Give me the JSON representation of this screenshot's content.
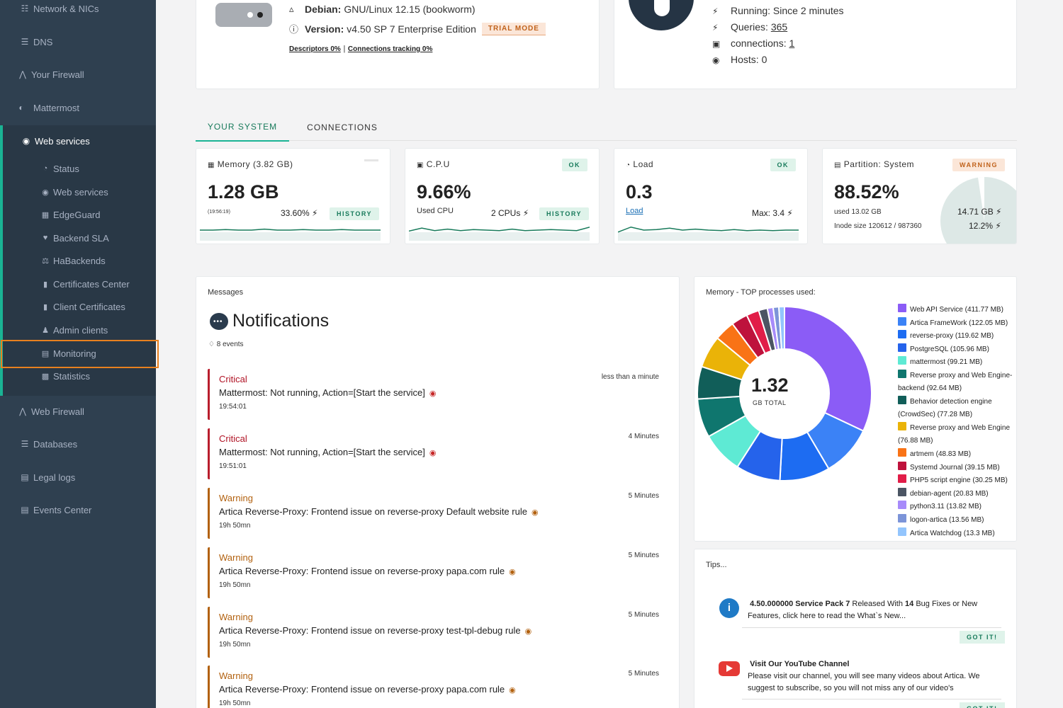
{
  "sidebar": {
    "items": [
      {
        "label": "Network & NICs",
        "icon": "network-icon"
      },
      {
        "label": "DNS",
        "icon": "database-icon"
      },
      {
        "label": "Your Firewall",
        "icon": "firewall-icon"
      },
      {
        "label": "Mattermost",
        "icon": "mattermost-icon"
      },
      {
        "label": "Web services",
        "icon": "globe-icon"
      },
      {
        "label": "Web Firewall",
        "icon": "firewall-icon"
      },
      {
        "label": "Databases",
        "icon": "database-icon"
      },
      {
        "label": "Legal logs",
        "icon": "file-icon"
      },
      {
        "label": "Events Center",
        "icon": "file-icon"
      }
    ],
    "sub_items": [
      {
        "label": "Status",
        "icon": "gauge-icon"
      },
      {
        "label": "Web services",
        "icon": "globe-icon"
      },
      {
        "label": "EdgeGuard",
        "icon": "edge-icon"
      },
      {
        "label": "Backend SLA",
        "icon": "heart-icon"
      },
      {
        "label": "HaBackends",
        "icon": "balance-icon"
      },
      {
        "label": "Certificates Center",
        "icon": "lock-icon"
      },
      {
        "label": "Client Certificates",
        "icon": "lock-icon"
      },
      {
        "label": "Admin clients",
        "icon": "user-icon"
      },
      {
        "label": "Monitoring",
        "icon": "file-chart-icon"
      },
      {
        "label": "Statistics",
        "icon": "chart-icon"
      }
    ]
  },
  "system": {
    "os_label": "Debian:",
    "os_value": "GNU/Linux 12.15 (bookworm)",
    "version_label": "Version:",
    "version_value": "v4.50 SP 7 Enterprise Edition",
    "trial": "TRIAL MODE",
    "descriptors": "Descriptors 0%",
    "separator": "|",
    "connections_tracking": "Connections tracking 0%"
  },
  "service": {
    "running": "Running: Since 2 minutes",
    "queries_label": "Queries:",
    "queries_value": "365",
    "connections_label": "connections:",
    "connections_value": "1",
    "hosts": "Hosts: 0"
  },
  "tabs": [
    {
      "label": "YOUR SYSTEM",
      "active": true
    },
    {
      "label": "CONNECTIONS",
      "active": false
    }
  ],
  "metrics": {
    "memory": {
      "title": "Memory (3.82 GB)",
      "value": "1.28 GB",
      "time": "(19:56:19)",
      "percent": "33.60%",
      "history": "HISTORY",
      "spark": [
        0.5,
        0.5,
        0.45,
        0.5,
        0.5,
        0.4,
        0.5,
        0.5,
        0.45,
        0.5,
        0.5,
        0.45,
        0.5,
        0.5,
        0.5
      ]
    },
    "cpu": {
      "title": "C.P.U",
      "status": "OK",
      "value": "9.66%",
      "sub": "Used CPU",
      "cpus": "2 CPUs",
      "history": "HISTORY",
      "spark": [
        0.6,
        0.3,
        0.55,
        0.4,
        0.55,
        0.45,
        0.5,
        0.55,
        0.4,
        0.55,
        0.5,
        0.45,
        0.5,
        0.55,
        0.2
      ]
    },
    "load": {
      "title": "Load",
      "status": "OK",
      "value": "0.3",
      "link": "Load",
      "max": "Max: 3.4",
      "spark": [
        0.7,
        0.2,
        0.5,
        0.45,
        0.3,
        0.5,
        0.4,
        0.5,
        0.55,
        0.45,
        0.55,
        0.5,
        0.55,
        0.5,
        0.5
      ]
    },
    "partition": {
      "title": "Partition: System",
      "status": "WARNING",
      "value": "88.52%",
      "used": "used 13.02 GB",
      "inode": "Inode size 120612 / 987360",
      "size": "14.71 GB",
      "percent2": "12.2%"
    }
  },
  "messages": {
    "header": "Messages",
    "title": "Notifications",
    "events": "8 events",
    "items": [
      {
        "level": "Critical",
        "kind": "critical",
        "message": "Mattermost: Not running, Action=[Start the service]",
        "time": "19:54:01",
        "ago": "less than a minute"
      },
      {
        "level": "Critical",
        "kind": "critical",
        "message": "Mattermost: Not running, Action=[Start the service]",
        "time": "19:51:01",
        "ago": "4 Minutes"
      },
      {
        "level": "Warning",
        "kind": "warn",
        "message": "Artica Reverse-Proxy: Frontend issue on reverse-proxy Default website rule",
        "time": "19h 50mn",
        "ago": "5 Minutes"
      },
      {
        "level": "Warning",
        "kind": "warn",
        "message": "Artica Reverse-Proxy: Frontend issue on reverse-proxy papa.com rule",
        "time": "19h 50mn",
        "ago": "5 Minutes"
      },
      {
        "level": "Warning",
        "kind": "warn",
        "message": "Artica Reverse-Proxy: Frontend issue on reverse-proxy test-tpl-debug rule",
        "time": "19h 50mn",
        "ago": "5 Minutes"
      },
      {
        "level": "Warning",
        "kind": "warn",
        "message": "Artica Reverse-Proxy: Frontend issue on reverse-proxy papa.com rule",
        "time": "19h 50mn",
        "ago": "5 Minutes"
      }
    ]
  },
  "memory_top": {
    "title": "Memory -  TOP processes used:",
    "total_value": "1.32",
    "total_label": "GB TOTAL"
  },
  "chart_data": {
    "type": "pie",
    "title": "Memory -  TOP processes used:",
    "unit": "MB",
    "categories": [
      "Web API Service (411.77 MB)",
      "Artica FrameWork (122.05 MB)",
      "reverse-proxy (119.62 MB)",
      "PostgreSQL (105.96 MB)",
      "mattermost (99.21 MB)",
      "Reverse proxy and Web Engine-backend (92.64 MB)",
      "Behavior detection engine (CrowdSec) (77.28 MB)",
      "Reverse proxy and Web Engine (76.88 MB)",
      "artmem (48.83 MB)",
      "Systemd Journal (39.15 MB)",
      "PHP5 script engine (30.25 MB)",
      "debian-agent (20.83 MB)",
      "python3.11 (13.82 MB)",
      "logon-artica (13.56 MB)",
      "Artica Watchdog (13.3 MB)"
    ],
    "values": [
      411.77,
      122.05,
      119.62,
      105.96,
      99.21,
      92.64,
      77.28,
      76.88,
      48.83,
      39.15,
      30.25,
      20.83,
      13.82,
      13.56,
      13.3
    ],
    "colors": [
      "#8b5cf6",
      "#3b82f6",
      "#1d6cf2",
      "#2563eb",
      "#5eead4",
      "#0f766e",
      "#115e59",
      "#eab308",
      "#f97316",
      "#be123c",
      "#e11d48",
      "#4b5563",
      "#a78bfa",
      "#7c94d8",
      "#93c5fd"
    ],
    "legend_position": "right"
  },
  "tips": {
    "header": "Tips...",
    "items": [
      {
        "bold1": "4.50.000000 Service Pack 7",
        "text1": " Released With ",
        "bold2": "14",
        "text2": " Bug Fixes or New Features, click here to read the What`s New...",
        "button": "GOT IT!",
        "icon": "info-icon"
      },
      {
        "bold1": "Visit Our YouTube Channel",
        "text1": "Please visit our channel, you will see many videos about Artica. We suggest to subscribe, so you will not miss any of our video's",
        "button": "GOT IT!",
        "icon": "youtube-icon"
      }
    ]
  },
  "colors": {
    "sidebar": "#2f4050",
    "accent": "#1ab394",
    "critical": "#b01224",
    "warning": "#b2610f"
  }
}
